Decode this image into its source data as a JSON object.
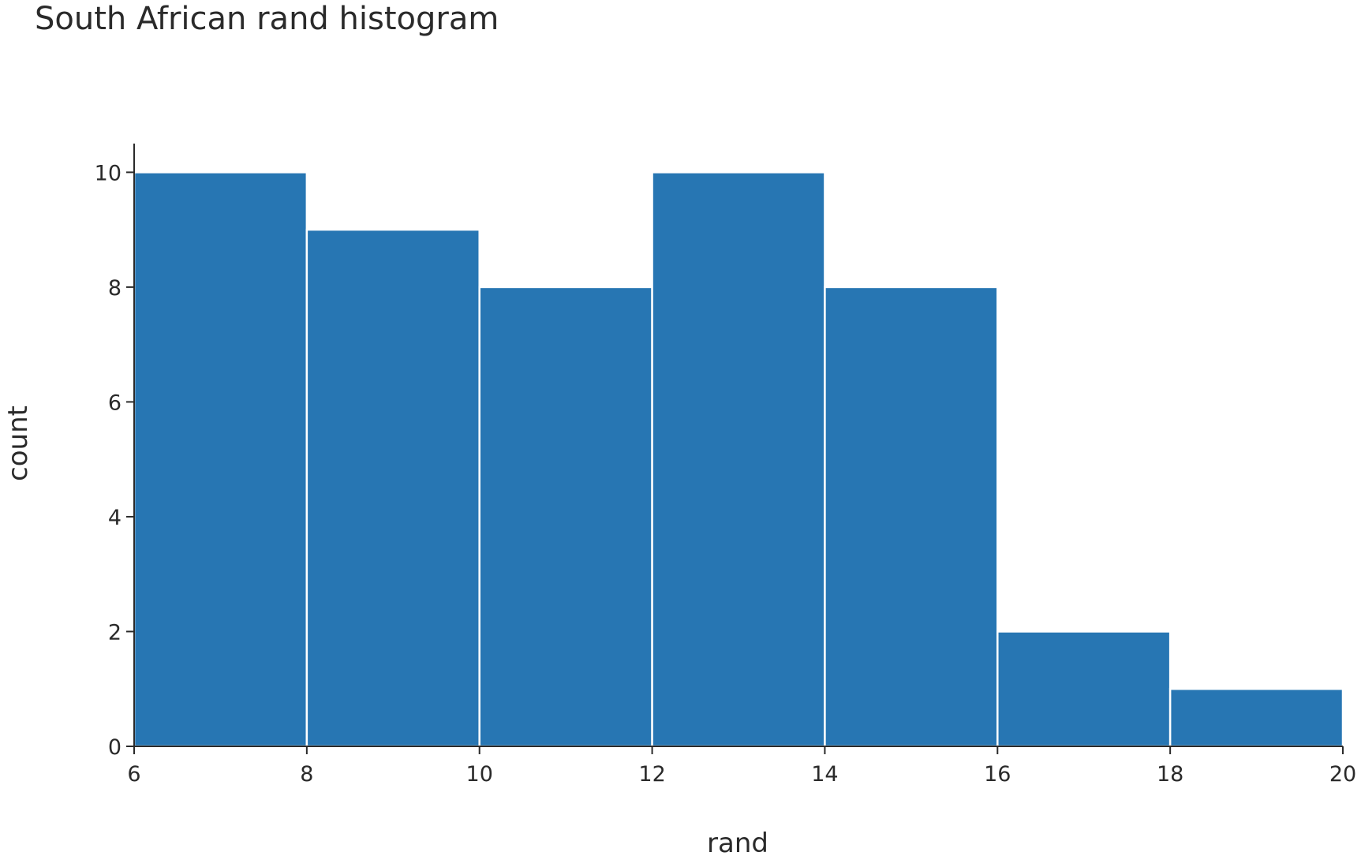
{
  "chart_data": {
    "type": "bar",
    "title": "South African rand histogram",
    "xlabel": "rand",
    "ylabel": "count",
    "bins": [
      {
        "x0": 6,
        "x1": 8,
        "count": 10
      },
      {
        "x0": 8,
        "x1": 10,
        "count": 9
      },
      {
        "x0": 10,
        "x1": 12,
        "count": 8
      },
      {
        "x0": 12,
        "x1": 14,
        "count": 10
      },
      {
        "x0": 14,
        "x1": 16,
        "count": 8
      },
      {
        "x0": 16,
        "x1": 18,
        "count": 2
      },
      {
        "x0": 18,
        "x1": 20,
        "count": 1
      }
    ],
    "xlim": [
      6,
      20
    ],
    "ylim": [
      0,
      10.5
    ],
    "x_ticks": [
      6,
      8,
      10,
      12,
      14,
      16,
      18,
      20
    ],
    "y_ticks": [
      0,
      2,
      4,
      6,
      8,
      10
    ],
    "grid": false,
    "bar_color": "#2776b3",
    "bar_edge_color": "#ffffff"
  }
}
